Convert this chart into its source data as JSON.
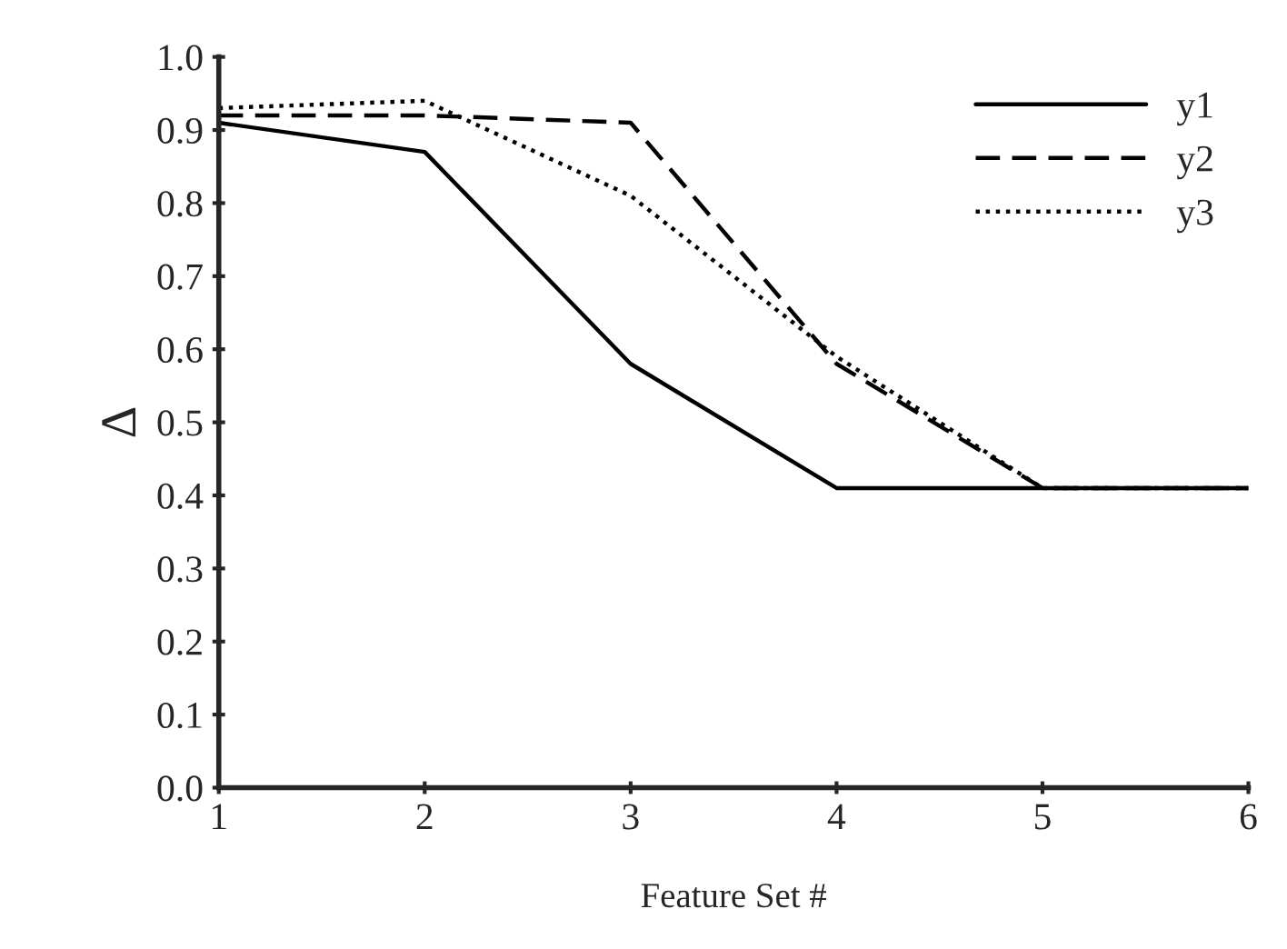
{
  "chart_data": {
    "type": "line",
    "xlabel": "Feature Set #",
    "ylabel": "Δ",
    "x": [
      1,
      2,
      3,
      4,
      5,
      6
    ],
    "series": [
      {
        "name": "y1",
        "color": "#000000",
        "line_style": "solid",
        "values": [
          0.91,
          0.87,
          0.58,
          0.41,
          0.41,
          0.41
        ]
      },
      {
        "name": "y2",
        "color": "#000000",
        "line_style": "dashed",
        "values": [
          0.92,
          0.92,
          0.91,
          0.58,
          0.41,
          0.41
        ]
      },
      {
        "name": "y3",
        "color": "#000000",
        "line_style": "dotted",
        "values": [
          0.93,
          0.94,
          0.81,
          0.59,
          0.41,
          0.41
        ]
      }
    ],
    "xlim": [
      1,
      6
    ],
    "xticks": [
      1,
      2,
      3,
      4,
      5,
      6
    ],
    "ylim": [
      0.0,
      1.0
    ],
    "yticks": [
      {
        "value": 0.0,
        "label": "0.0"
      },
      0.1,
      0.2,
      0.3,
      0.4,
      0.5,
      0.6,
      0.7,
      0.8,
      0.9,
      {
        "value": 1.0,
        "label": "1.0"
      }
    ],
    "grid": false,
    "legend": "top right",
    "marker": "none"
  }
}
